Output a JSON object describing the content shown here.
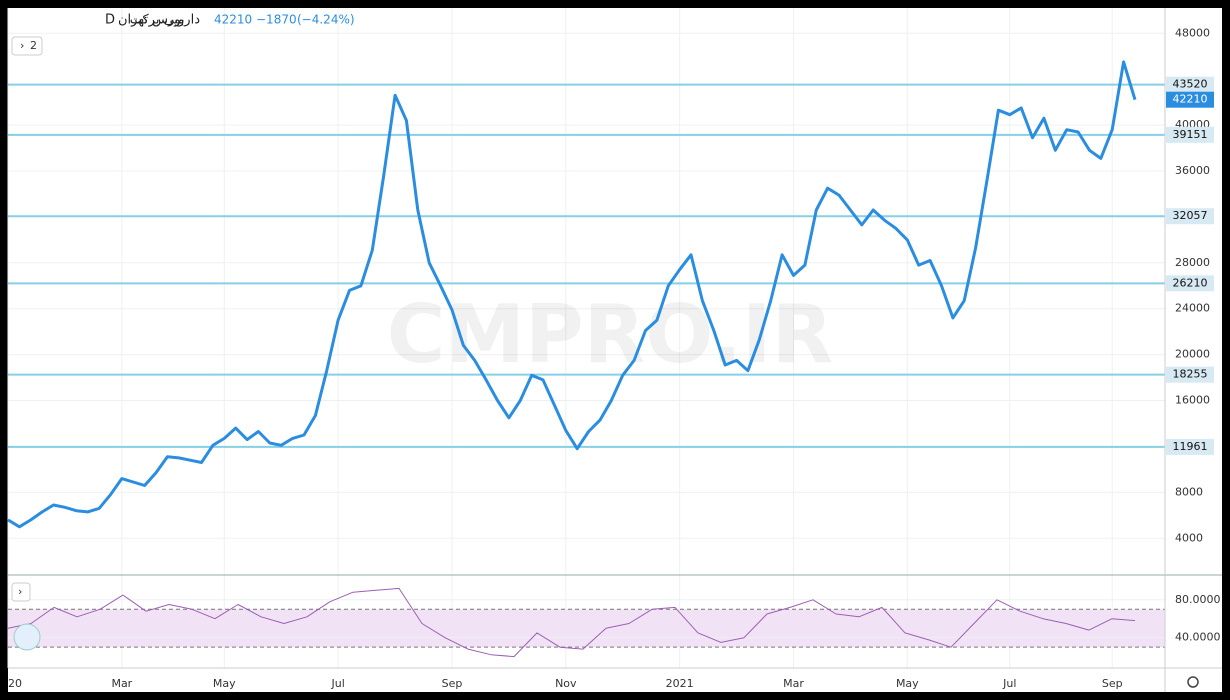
{
  "header": {
    "symbol": "دارویی برکت",
    "interval": "D",
    "exchange": "بورس تهران",
    "change": "−1870",
    "change_pct": "(−4.24%)",
    "indicator_count": "2",
    "watermark": "CMPRO.IR"
  },
  "chart_data": [
    {
      "type": "line",
      "name": "price",
      "color": "#2b8de0",
      "categories": [
        "20",
        null,
        null,
        null,
        null,
        null,
        null,
        null,
        null,
        null,
        "Mar",
        null,
        null,
        null,
        null,
        null,
        null,
        null,
        null,
        "May",
        null,
        null,
        null,
        null,
        null,
        null,
        null,
        null,
        null,
        "Jul",
        null,
        null,
        null,
        null,
        null,
        null,
        null,
        null,
        null,
        "Sep",
        null,
        null,
        null,
        null,
        null,
        null,
        null,
        null,
        null,
        "Nov",
        null,
        null,
        null,
        null,
        null,
        null,
        null,
        null,
        null,
        "2021",
        null,
        null,
        null,
        null,
        null,
        null,
        null,
        null,
        null,
        "Mar",
        null,
        null,
        null,
        null,
        null,
        null,
        null,
        null,
        null,
        "May",
        null,
        null,
        null,
        null,
        null,
        null,
        null,
        null,
        "Jul",
        null,
        null,
        null,
        null,
        null,
        null,
        null,
        null,
        "Sep",
        null,
        null
      ],
      "values": [
        5600,
        5000,
        5600,
        6300,
        6900,
        6700,
        6400,
        6300,
        6600,
        7800,
        9200,
        8900,
        8600,
        9700,
        11100,
        11000,
        10800,
        10600,
        12100,
        12700,
        13600,
        12600,
        13300,
        12300,
        12100,
        12700,
        13000,
        14700,
        18600,
        23000,
        25600,
        26000,
        29100,
        35600,
        42600,
        40400,
        32600,
        28000,
        26000,
        23900,
        20800,
        19500,
        17800,
        16000,
        14500,
        16000,
        18200,
        17800,
        15600,
        13400,
        11800,
        13300,
        14300,
        16000,
        18200,
        19500,
        22100,
        23000,
        26000,
        27400,
        28700,
        24700,
        22100,
        19100,
        19500,
        18600,
        21300,
        24700,
        28700,
        26900,
        27800,
        32600,
        34500,
        33900,
        32600,
        31300,
        32600,
        31700,
        31000,
        30000,
        27800,
        28200,
        26000,
        23200,
        24700,
        29300,
        35200,
        41300,
        40900,
        41500,
        38900,
        40600,
        37800,
        39600,
        39400,
        37800,
        37100,
        39600,
        45500,
        42210
      ],
      "ylim": [
        800,
        50200
      ],
      "yticks": [
        4000,
        8000,
        16000,
        20000,
        24000,
        28000,
        36000,
        40000,
        48000
      ],
      "grid": true,
      "levels": [
        43520,
        39151,
        32057,
        26210,
        18255,
        11961
      ],
      "level_color": "#86cfe6",
      "last_price": 42210
    },
    {
      "type": "line",
      "name": "rsi",
      "color": "#9c5fb5",
      "categories": [
        null,
        null,
        null,
        null,
        null,
        null,
        null,
        null,
        null,
        null,
        null,
        null,
        null,
        null,
        null,
        null,
        null,
        null,
        null,
        null,
        null,
        null,
        null,
        null,
        null,
        null,
        null,
        null,
        null,
        null,
        null,
        null,
        null,
        null,
        null,
        null,
        null,
        null,
        null,
        null,
        null,
        null,
        null,
        null,
        null,
        null,
        null,
        null,
        null,
        null
      ],
      "values": [
        50,
        55,
        72,
        62,
        70,
        85,
        68,
        75,
        70,
        60,
        75,
        62,
        55,
        62,
        78,
        88,
        90,
        92,
        55,
        40,
        28,
        22,
        20,
        45,
        30,
        28,
        50,
        55,
        70,
        72,
        45,
        35,
        40,
        65,
        72,
        80,
        65,
        62,
        72,
        45,
        38,
        30,
        55,
        80,
        68,
        60,
        55,
        48,
        60,
        58
      ],
      "ylim": [
        8,
        103
      ],
      "yticks": [
        {
          "value": 80,
          "label": "80.0000"
        },
        {
          "value": 40,
          "label": "40.0000"
        }
      ],
      "bands": [
        30,
        70
      ],
      "band_fill": "#f1e3f5"
    }
  ]
}
